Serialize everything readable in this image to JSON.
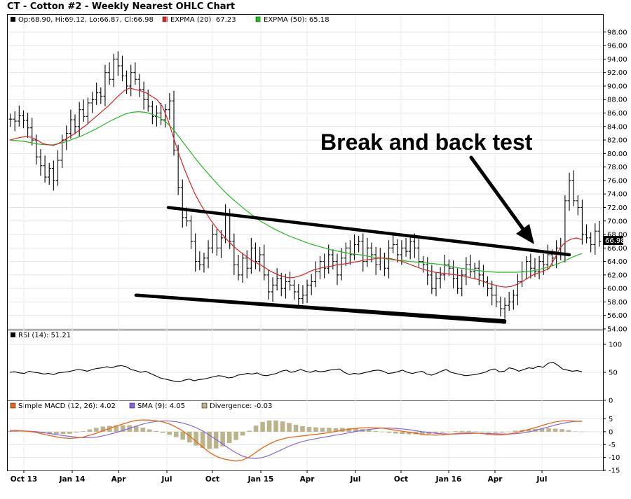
{
  "chart_title": "CT - Cotton #2 - Weekly Nearest OHLC Chart",
  "colors": {
    "ema20": "#dd2020",
    "ema50": "#22bb22",
    "rsi": "#000000",
    "macd": "#ee6611",
    "macd_signal": "#8866dd",
    "divergence": "#bbb38a",
    "trendlines": "#000000",
    "price_bars": "#000000"
  },
  "chart_data": [
    {
      "panel": "price",
      "type": "ohlc",
      "legend": {
        "ohlc": "Op:68.90, Hi:69.12, Lo:66.87, Cl:66.98",
        "ema20": "EXPMA (20): 67.23",
        "ema50": "EXPMA (50): 65.18"
      },
      "last_price_label": "66.98",
      "ylim": [
        54,
        98.5
      ],
      "y_ticks": [
        "98.00",
        "96.00",
        "94.00",
        "92.00",
        "90.00",
        "88.00",
        "86.00",
        "84.00",
        "82.00",
        "80.00",
        "78.00",
        "76.00",
        "74.00",
        "72.00",
        "70.00",
        "68.00",
        "66.00",
        "64.00",
        "62.00",
        "60.00",
        "58.00",
        "56.00",
        "54.00"
      ],
      "closes": [
        85.1,
        84.8,
        85.6,
        84.9,
        83.8,
        82.0,
        79.5,
        78.2,
        76.5,
        77.8,
        76.0,
        79.0,
        82.0,
        83.0,
        85.0,
        84.0,
        86.5,
        85.5,
        87.5,
        88.0,
        89.0,
        88.5,
        92.0,
        91.0,
        94.0,
        93.0,
        91.5,
        90.0,
        92.0,
        91.0,
        89.5,
        88.0,
        87.0,
        85.5,
        86.0,
        85.0,
        86.5,
        87.8,
        80.5,
        75.0,
        70.5,
        70.0,
        67.0,
        64.0,
        63.5,
        64.5,
        66.0,
        68.0,
        66.0,
        67.5,
        71.0,
        67.0,
        63.5,
        62.0,
        64.5,
        63.0,
        66.0,
        64.0,
        65.0,
        62.0,
        59.5,
        60.5,
        61.5,
        60.0,
        61.0,
        60.5,
        59.5,
        58.5,
        59.0,
        60.5,
        61.0,
        62.5,
        64.0,
        63.0,
        65.0,
        64.0,
        62.0,
        64.5,
        66.0,
        65.0,
        66.5,
        67.0,
        64.0,
        66.0,
        65.0,
        63.5,
        64.5,
        63.0,
        66.0,
        66.5,
        65.0,
        66.0,
        65.5,
        67.0,
        66.0,
        64.0,
        63.5,
        62.0,
        60.0,
        61.5,
        62.0,
        63.5,
        63.0,
        61.5,
        60.0,
        62.0,
        63.5,
        62.5,
        63.0,
        62.0,
        61.0,
        60.0,
        59.0,
        58.0,
        57.0,
        57.5,
        58.0,
        59.0,
        61.0,
        62.5,
        64.0,
        63.0,
        62.5,
        64.0,
        63.5,
        65.0,
        64.5,
        66.0,
        65.0,
        73.0,
        76.0,
        73.0,
        72.0,
        68.0,
        67.5,
        66.5,
        68.5,
        66.98
      ],
      "ema20": [
        82.0,
        82.2,
        82.4,
        82.5,
        82.4,
        82.0,
        81.5,
        81.3,
        81.2,
        81.5,
        82.0,
        82.5,
        83.0,
        83.6,
        84.2,
        84.9,
        85.6,
        86.3,
        87.0,
        87.8,
        88.6,
        89.3,
        89.7,
        89.5,
        89.3,
        89.0,
        88.5,
        88.0,
        87.0,
        85.0,
        82.5,
        80.0,
        77.8,
        75.8,
        74.0,
        72.5,
        71.2,
        70.0,
        68.9,
        68.0,
        67.1,
        66.3,
        65.6,
        65.0,
        64.4,
        63.9,
        63.5,
        63.0,
        62.5,
        62.1,
        61.8,
        61.6,
        61.6,
        61.8,
        62.1,
        62.5,
        62.8,
        63.0,
        63.2,
        63.3,
        63.5,
        63.6,
        63.7,
        63.9,
        64.0,
        64.2,
        64.3,
        64.4,
        64.5,
        64.5,
        64.4,
        64.2,
        64.0,
        63.7,
        63.4,
        63.1,
        62.8,
        62.6,
        62.4,
        62.3,
        62.2,
        62.1,
        62.0,
        61.9,
        61.7,
        61.5,
        61.3,
        61.0,
        60.7,
        60.5,
        60.3,
        60.2,
        60.3,
        60.6,
        61.0,
        61.5,
        62.0,
        62.3,
        62.6,
        63.0,
        64.5,
        66.0,
        66.9,
        67.3,
        67.5,
        67.23
      ],
      "ema50": [
        82.0,
        81.9,
        81.8,
        81.6,
        81.4,
        81.3,
        81.3,
        81.5,
        81.8,
        82.2,
        82.6,
        83.1,
        83.6,
        84.2,
        84.8,
        85.3,
        85.8,
        86.1,
        86.2,
        86.1,
        85.8,
        85.3,
        84.5,
        83.4,
        82.0,
        80.6,
        79.2,
        77.9,
        76.7,
        75.5,
        74.4,
        73.4,
        72.5,
        71.6,
        70.8,
        70.0,
        69.4,
        68.8,
        68.3,
        67.8,
        67.4,
        67.0,
        66.6,
        66.3,
        66.0,
        65.7,
        65.5,
        65.3,
        65.1,
        65.0,
        64.8,
        64.6,
        64.5,
        64.3,
        64.2,
        64.1,
        64.0,
        63.9,
        63.8,
        63.7,
        63.6,
        63.4,
        63.2,
        63.0,
        62.9,
        62.7,
        62.6,
        62.5,
        62.4,
        62.4,
        62.4,
        62.4,
        62.5,
        62.6,
        62.8,
        63.1,
        63.4,
        63.8,
        64.3,
        64.8,
        65.18
      ],
      "trendlines": [
        {
          "from": [
            "2014-07-15",
            72.0
          ],
          "to": [
            "2016-08-25",
            65.0
          ]
        },
        {
          "from": [
            "2014-12-15",
            59.0
          ],
          "to": [
            "2016-05-22",
            55.2
          ]
        },
        {
          "from": [
            "2014-12-15",
            59.0
          ],
          "to": [
            "2016-05-22",
            55.0
          ]
        }
      ],
      "annotation": "Break and back test"
    },
    {
      "panel": "rsi",
      "type": "line",
      "legend": "RSI (14): 51.21",
      "ylim": [
        0,
        100
      ],
      "y_ticks": [
        "100",
        "50",
        "0"
      ],
      "values": [
        50,
        51,
        49,
        48,
        52,
        50,
        49,
        47,
        48,
        46,
        49,
        50,
        51,
        53,
        55,
        54,
        52,
        55,
        57,
        58,
        60,
        58,
        61,
        62,
        60,
        55,
        53,
        50,
        52,
        48,
        44,
        40,
        38,
        36,
        34,
        33,
        36,
        38,
        35,
        37,
        38,
        40,
        42,
        44,
        43,
        40,
        41,
        45,
        46,
        48,
        47,
        49,
        45,
        44,
        46,
        48,
        52,
        54,
        50,
        52,
        55,
        52,
        50,
        53,
        51,
        52,
        54,
        55,
        56,
        50,
        46,
        48,
        47,
        49,
        51,
        53,
        54,
        52,
        48,
        49,
        51,
        54,
        50,
        48,
        50,
        52,
        47,
        45,
        48,
        52,
        55,
        50,
        48,
        46,
        44,
        45,
        46,
        48,
        50,
        54,
        56,
        51,
        52,
        58,
        56,
        52,
        55,
        58,
        57,
        61,
        59,
        66,
        68,
        63,
        56,
        54,
        52,
        53,
        51.21
      ]
    },
    {
      "panel": "macd",
      "type": "line+bar",
      "legend": {
        "macd": "Simple MACD (12, 26): 4.02",
        "signal": "SMA (9): 4.05",
        "divergence": "Divergence: -0.03"
      },
      "ylim": [
        -15,
        6.5
      ],
      "y_ticks": [
        "5",
        "0",
        "-5",
        "-10",
        "-15"
      ],
      "macd": [
        0.4,
        0.5,
        0.3,
        0.1,
        -0.3,
        -0.9,
        -1.5,
        -2.0,
        -2.4,
        -2.6,
        -2.4,
        -2.1,
        -1.4,
        -0.6,
        0.4,
        1.3,
        2.2,
        3.0,
        3.8,
        4.4,
        4.6,
        4.5,
        4.3,
        3.8,
        3.0,
        1.8,
        0.3,
        -1.6,
        -3.8,
        -6.0,
        -8.0,
        -9.5,
        -10.5,
        -11.0,
        -11.4,
        -11.0,
        -9.8,
        -8.0,
        -6.2,
        -4.8,
        -3.6,
        -2.8,
        -2.2,
        -1.9,
        -1.6,
        -1.3,
        -1.0,
        -0.7,
        -0.3,
        0.1,
        0.6,
        1.0,
        1.3,
        1.5,
        1.6,
        1.5,
        1.4,
        1.0,
        0.6,
        0.2,
        -0.2,
        -0.6,
        -1.0,
        -1.2,
        -1.3,
        -1.2,
        -1.0,
        -0.7,
        -0.5,
        -0.4,
        -0.5,
        -0.7,
        -1.0,
        -1.2,
        -1.2,
        -0.9,
        -0.4,
        0.2,
        0.9,
        1.6,
        2.4,
        3.2,
        3.8,
        4.2,
        4.3,
        4.1,
        4.02
      ],
      "signal": [
        0.2,
        0.3,
        0.3,
        0.2,
        0.0,
        -0.3,
        -0.7,
        -1.1,
        -1.5,
        -1.8,
        -2.1,
        -2.3,
        -2.3,
        -2.1,
        -1.6,
        -1.0,
        -0.3,
        0.5,
        1.3,
        2.2,
        3.0,
        3.6,
        4.0,
        4.2,
        4.2,
        3.9,
        3.4,
        2.6,
        1.6,
        0.3,
        -1.3,
        -3.0,
        -4.8,
        -6.6,
        -8.2,
        -9.5,
        -10.2,
        -10.4,
        -10.0,
        -9.2,
        -8.0,
        -6.8,
        -5.6,
        -4.6,
        -3.8,
        -3.2,
        -2.7,
        -2.2,
        -1.8,
        -1.3,
        -0.9,
        -0.4,
        0.1,
        0.5,
        0.9,
        1.2,
        1.4,
        1.4,
        1.3,
        1.1,
        0.8,
        0.4,
        0.0,
        -0.3,
        -0.6,
        -0.8,
        -0.9,
        -0.9,
        -0.8,
        -0.7,
        -0.6,
        -0.6,
        -0.7,
        -0.8,
        -0.9,
        -0.9,
        -0.8,
        -0.5,
        -0.1,
        0.5,
        1.2,
        1.9,
        2.6,
        3.2,
        3.7,
        4.0,
        4.05
      ],
      "divergence": [
        0.2,
        0.2,
        0.0,
        -0.1,
        -0.3,
        -0.6,
        -0.8,
        -0.9,
        -0.9,
        -0.8,
        -0.3,
        0.2,
        0.9,
        1.5,
        2.0,
        2.3,
        2.5,
        2.5,
        2.5,
        2.2,
        1.6,
        0.9,
        0.3,
        -0.4,
        -1.2,
        -2.1,
        -3.1,
        -4.2,
        -5.4,
        -6.3,
        -6.7,
        -6.5,
        -5.7,
        -4.4,
        -3.2,
        -1.5,
        0.4,
        2.4,
        3.8,
        4.4,
        4.4,
        4.0,
        3.4,
        2.7,
        2.2,
        1.9,
        1.7,
        1.5,
        1.5,
        1.4,
        1.5,
        1.4,
        1.2,
        1.0,
        0.7,
        0.3,
        0.0,
        -0.4,
        -0.7,
        -0.9,
        -1.0,
        -1.0,
        -1.0,
        -0.9,
        -0.7,
        -0.4,
        -0.1,
        0.2,
        0.3,
        0.3,
        0.1,
        -0.1,
        -0.3,
        -0.4,
        -0.3,
        0.0,
        0.4,
        0.7,
        1.0,
        1.1,
        1.2,
        1.3,
        1.2,
        1.0,
        0.6,
        0.1,
        -0.03
      ]
    }
  ],
  "x_axis": {
    "labels": [
      "Oct 13",
      "Jan 14",
      "Apr",
      "Jul",
      "Oct",
      "Jan 15",
      "Apr",
      "Jul",
      "Oct",
      "Jan 16",
      "Apr",
      "Jul"
    ]
  }
}
